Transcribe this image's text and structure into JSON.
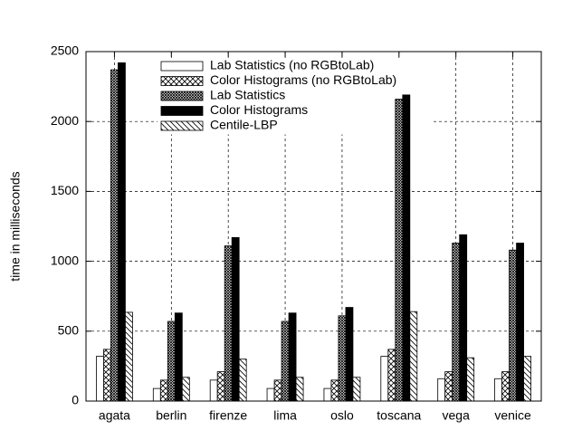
{
  "chart_data": {
    "type": "bar",
    "y_label": "time in milliseconds",
    "categories": [
      "agata",
      "berlin",
      "firenze",
      "lima",
      "oslo",
      "toscana",
      "vega",
      "venice"
    ],
    "series": [
      {
        "name": "Lab Statistics (no RGBtoLab)",
        "color": "#ffffff",
        "pattern": "none",
        "values": [
          320,
          90,
          150,
          90,
          90,
          320,
          160,
          160
        ]
      },
      {
        "name": "Color Histograms (no RGBtoLab)",
        "color": "#ffffff",
        "pattern": "crosshatch",
        "values": [
          370,
          150,
          210,
          150,
          150,
          370,
          210,
          210
        ]
      },
      {
        "name": "Lab Statistics",
        "color": "#ffffff",
        "pattern": "dense-crosshatch",
        "values": [
          2370,
          570,
          1110,
          570,
          610,
          2160,
          1130,
          1080
        ]
      },
      {
        "name": "Color Histograms",
        "color": "#000000",
        "pattern": "none",
        "values": [
          2420,
          630,
          1170,
          630,
          670,
          2190,
          1190,
          1130
        ]
      },
      {
        "name": "Centile-LBP",
        "color": "#ffffff",
        "pattern": "diagonal",
        "values": [
          635,
          170,
          300,
          170,
          170,
          640,
          310,
          320
        ]
      }
    ],
    "ylim": [
      0,
      2500
    ],
    "yticks": [
      0,
      500,
      1000,
      1500,
      2000,
      2500
    ],
    "grid": true,
    "legend": "top-left"
  }
}
